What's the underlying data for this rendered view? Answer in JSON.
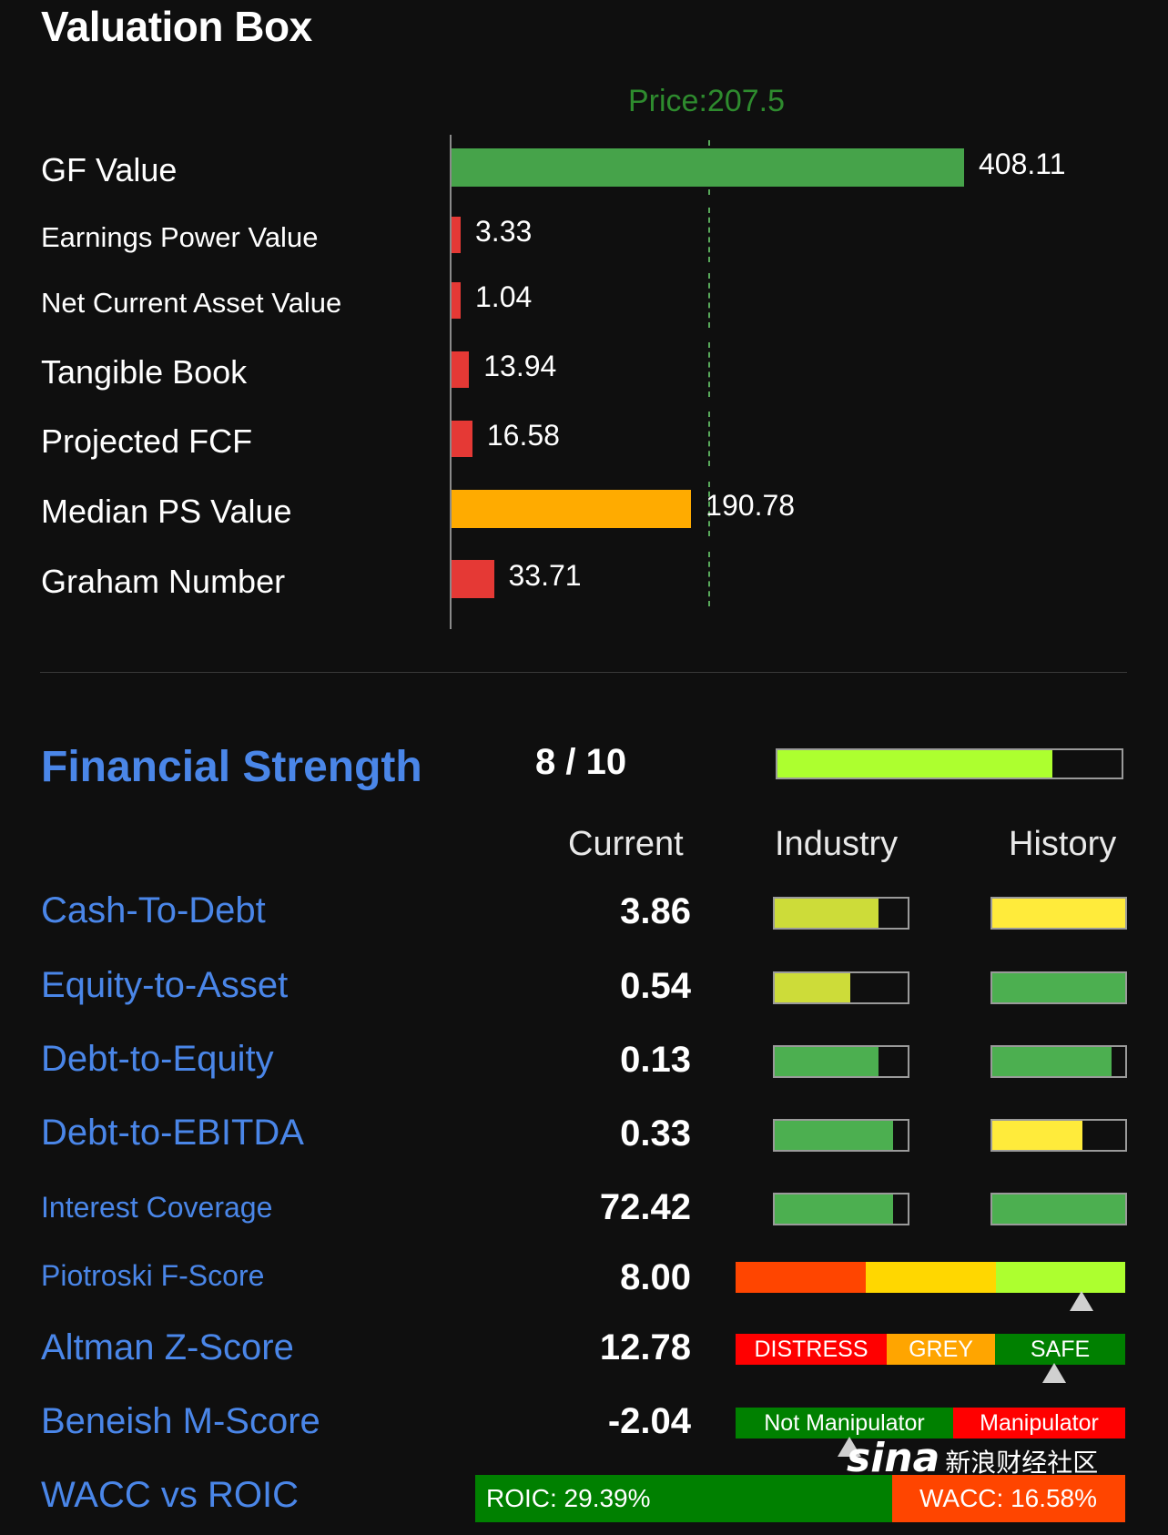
{
  "valuation": {
    "title": "Valuation Box",
    "price_label": "Price:207.5",
    "price": 207.5,
    "rows": [
      {
        "label": "GF Value",
        "value": "408.11",
        "num": 408.11,
        "color": "#46a34a"
      },
      {
        "label": "Earnings Power Value",
        "value": "3.33",
        "num": 3.33,
        "color": "#e53935"
      },
      {
        "label": "Net Current Asset Value",
        "value": "1.04",
        "num": 1.04,
        "color": "#e53935"
      },
      {
        "label": "Tangible Book",
        "value": "13.94",
        "num": 13.94,
        "color": "#e53935"
      },
      {
        "label": "Projected FCF",
        "value": "16.58",
        "num": 16.58,
        "color": "#e53935"
      },
      {
        "label": "Median PS Value",
        "value": "190.78",
        "num": 190.78,
        "color": "#ffab00"
      },
      {
        "label": "Graham Number",
        "value": "33.71",
        "num": 33.71,
        "color": "#e53935"
      }
    ]
  },
  "financial_strength": {
    "title": "Financial Strength",
    "score": "8 / 10",
    "score_fraction": 0.8,
    "meter_color": "#adff2f",
    "columns": {
      "current": "Current",
      "industry": "Industry",
      "history": "History"
    },
    "rows": [
      {
        "label": "Cash-To-Debt",
        "value": "3.86",
        "industry": 0.78,
        "industry_color": "#cddc39",
        "history": 1.0,
        "history_color": "#ffeb3b"
      },
      {
        "label": "Equity-to-Asset",
        "value": "0.54",
        "industry": 0.57,
        "industry_color": "#cddc39",
        "history": 1.0,
        "history_color": "#4caf50"
      },
      {
        "label": "Debt-to-Equity",
        "value": "0.13",
        "industry": 0.78,
        "industry_color": "#4caf50",
        "history": 0.9,
        "history_color": "#4caf50"
      },
      {
        "label": "Debt-to-EBITDA",
        "value": "0.33",
        "industry": 0.89,
        "industry_color": "#4caf50",
        "history": 0.68,
        "history_color": "#ffeb3b"
      },
      {
        "label": "Interest Coverage",
        "value": "72.42",
        "industry": 0.89,
        "industry_color": "#4caf50",
        "history": 1.0,
        "history_color": "#4caf50"
      }
    ],
    "piotroski": {
      "label": "Piotroski F-Score",
      "value": "8.00",
      "score": 8,
      "max": 9,
      "colors": [
        "#ff4500",
        "#ffd700",
        "#adff2f"
      ]
    },
    "altman": {
      "label": "Altman Z-Score",
      "value": "12.78",
      "segments": [
        "DISTRESS",
        "GREY",
        "SAFE"
      ],
      "colors": [
        "#ff0000",
        "#ffa500",
        "#008000"
      ]
    },
    "beneish": {
      "label": "Beneish M-Score",
      "value": "-2.04",
      "segments": [
        "Not Manipulator",
        "Manipulator"
      ],
      "colors": [
        "#008000",
        "#ff0000"
      ]
    },
    "wacc_roic": {
      "label": "WACC vs ROIC",
      "roic": "ROIC: 29.39%",
      "wacc": "WACC: 16.58%",
      "roic_value": 29.39,
      "wacc_value": 16.58,
      "colors": [
        "#008000",
        "#ff4500"
      ]
    }
  },
  "watermark": {
    "logo": "sina",
    "text": "新浪财经社区"
  }
}
